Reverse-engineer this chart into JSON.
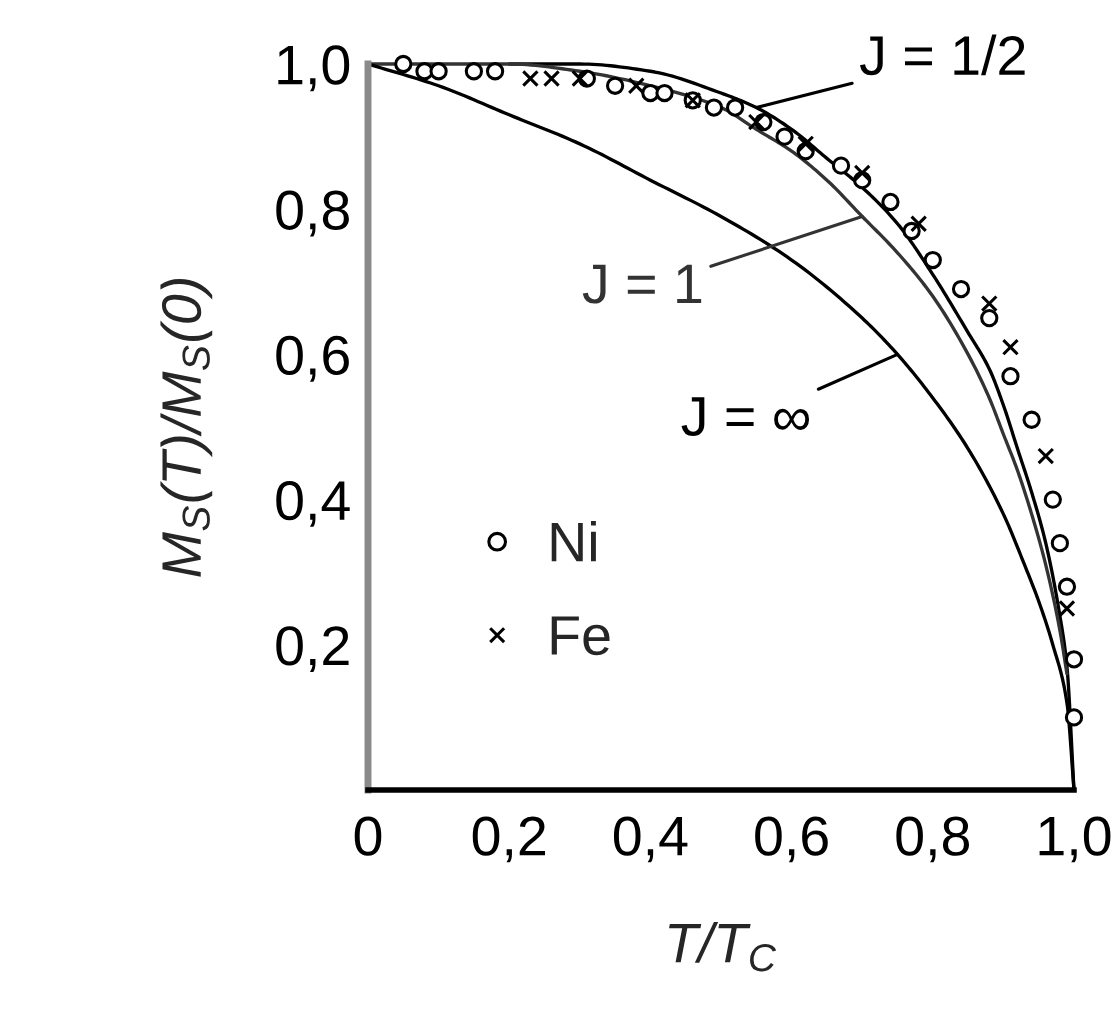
{
  "chart_data": {
    "type": "line",
    "xlabel": "T/T$_{C}$",
    "ylabel": "M$_{S}$(T)/M$_{S}$(0)",
    "xlim": [
      0,
      1.0
    ],
    "ylim": [
      0,
      1.0
    ],
    "xticks": [
      0,
      {
        "value": 0.2,
        "label": "0,2"
      },
      {
        "value": 0.4,
        "label": "0,4"
      },
      {
        "value": 0.6,
        "label": "0,6"
      },
      {
        "value": 0.8,
        "label": "0,8"
      },
      {
        "value": 1.0,
        "label": "1,0"
      }
    ],
    "yticks": [
      {
        "value": 0.2,
        "label": "0,2"
      },
      {
        "value": 0.4,
        "label": "0,4"
      },
      {
        "value": 0.6,
        "label": "0,6"
      },
      {
        "value": 0.8,
        "label": "0,8"
      },
      {
        "value": 1.0,
        "label": "1,0"
      }
    ],
    "legend": "bottom left",
    "series": [
      {
        "name": "J = 1/2",
        "color": "#000000",
        "x": [
          0.2,
          0.3,
          0.4,
          0.5,
          0.55,
          0.6,
          0.65,
          0.7,
          0.75,
          0.8,
          0.85,
          0.88,
          0.9,
          0.92,
          0.94,
          0.96,
          0.98,
          0.99,
          1.0
        ],
        "values": [
          1.0,
          1.0,
          0.99,
          0.96,
          0.94,
          0.91,
          0.87,
          0.83,
          0.78,
          0.71,
          0.63,
          0.58,
          0.53,
          0.47,
          0.41,
          0.34,
          0.24,
          0.17,
          0.0
        ]
      },
      {
        "name": "J = 1",
        "color": "#333333",
        "x": [
          0,
          0.1,
          0.2,
          0.3,
          0.4,
          0.5,
          0.55,
          0.6,
          0.65,
          0.7,
          0.75,
          0.8,
          0.85,
          0.88,
          0.9,
          0.92,
          0.94,
          0.96,
          0.98,
          0.99
        ],
        "values": [
          1.0,
          1.0,
          1.0,
          0.99,
          0.97,
          0.94,
          0.91,
          0.88,
          0.84,
          0.79,
          0.74,
          0.68,
          0.6,
          0.54,
          0.49,
          0.44,
          0.38,
          0.31,
          0.22,
          0.16
        ]
      },
      {
        "name": "J = ∞",
        "color": "#000000",
        "x": [
          0,
          0.1,
          0.2,
          0.3,
          0.4,
          0.5,
          0.6,
          0.7,
          0.75,
          0.8,
          0.85,
          0.9,
          0.93,
          0.95,
          0.97,
          0.99,
          1.0
        ],
        "values": [
          1.0,
          0.97,
          0.93,
          0.89,
          0.84,
          0.79,
          0.73,
          0.65,
          0.6,
          0.54,
          0.47,
          0.38,
          0.31,
          0.26,
          0.2,
          0.12,
          0.0
        ]
      },
      {
        "name": "Ni",
        "type": "scatter",
        "marker": "circle",
        "color": "#000000",
        "x": [
          0.05,
          0.08,
          0.1,
          0.15,
          0.18,
          0.31,
          0.35,
          0.4,
          0.42,
          0.46,
          0.49,
          0.52,
          0.56,
          0.59,
          0.62,
          0.67,
          0.7,
          0.74,
          0.77,
          0.8,
          0.84,
          0.88,
          0.91,
          0.94,
          0.97,
          0.98,
          0.99,
          1.0,
          1.0
        ],
        "values": [
          1.0,
          0.99,
          0.99,
          0.99,
          0.99,
          0.98,
          0.97,
          0.96,
          0.96,
          0.95,
          0.94,
          0.94,
          0.92,
          0.9,
          0.88,
          0.86,
          0.84,
          0.81,
          0.77,
          0.73,
          0.69,
          0.65,
          0.57,
          0.51,
          0.4,
          0.34,
          0.28,
          0.18,
          0.1
        ]
      },
      {
        "name": "Fe",
        "type": "scatter",
        "marker": "cross",
        "color": "#000000",
        "x": [
          0.23,
          0.26,
          0.3,
          0.38,
          0.46,
          0.55,
          0.62,
          0.7,
          0.78,
          0.88,
          0.91,
          0.96,
          0.99
        ],
        "values": [
          0.98,
          0.98,
          0.98,
          0.97,
          0.95,
          0.92,
          0.89,
          0.85,
          0.78,
          0.67,
          0.61,
          0.46,
          0.25
        ]
      }
    ]
  }
}
